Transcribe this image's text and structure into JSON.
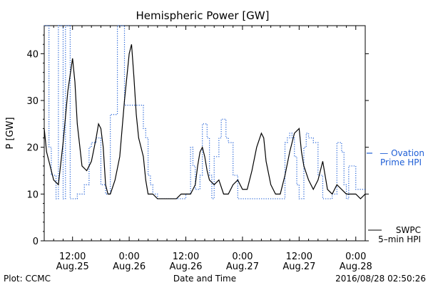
{
  "chart_data": {
    "type": "line",
    "title": "Hemispheric Power [GW]",
    "xlabel": "Date and Time",
    "ylabel": "P [GW]",
    "ylim": [
      0,
      46
    ],
    "xlim": [
      -18,
      50
    ],
    "x_unit": "hours relative to 2016-08-26 00:00 UT",
    "yticks": [
      0,
      10,
      20,
      30,
      40
    ],
    "xticks": [
      {
        "x": -12,
        "time": "12:00",
        "date": "Aug.25"
      },
      {
        "x": 0,
        "time": "0:00",
        "date": "Aug.26"
      },
      {
        "x": 12,
        "time": "12:00",
        "date": "Aug.26"
      },
      {
        "x": 24,
        "time": "0:00",
        "date": "Aug.27"
      },
      {
        "x": 36,
        "time": "12:00",
        "date": "Aug.27"
      },
      {
        "x": 48,
        "time": "0:00",
        "date": "Aug.28"
      }
    ],
    "series": [
      {
        "style": "dotted-step",
        "color": "#1f5fd6",
        "legend_label": "Ovation Prime HPI",
        "legend_line1": "— Ovation",
        "legend_line2": "Prime HPI",
        "x": [
          -18,
          -17,
          -16.5,
          -15.5,
          -15,
          -14,
          -13.5,
          -12.5,
          -11.5,
          -11,
          -10.5,
          -9.5,
          -9,
          -8.5,
          -8,
          -7,
          -6.5,
          -6,
          -5,
          -4.5,
          -4,
          -3,
          -2.5,
          -2,
          -1,
          0,
          1,
          2,
          3,
          3.5,
          4,
          4.5,
          5,
          6,
          8,
          10,
          11,
          12,
          12.5,
          13,
          13.5,
          14,
          15,
          15.5,
          16,
          16.5,
          17,
          17.5,
          18,
          19,
          19.5,
          20,
          20.5,
          21,
          22,
          23,
          24,
          26,
          28,
          29,
          30,
          31,
          32,
          32.5,
          33,
          33.5,
          34,
          34.5,
          35,
          35.5,
          36,
          37,
          37.5,
          38,
          38.5,
          39,
          40,
          41,
          42,
          43,
          44,
          45,
          45.5,
          46,
          46.5,
          47,
          48,
          49,
          50
        ],
        "y": [
          46,
          20,
          14,
          9,
          46,
          9,
          46,
          9,
          9,
          10,
          10,
          12,
          12,
          20,
          21,
          22,
          22,
          12,
          10,
          10,
          27,
          27,
          46,
          46,
          29,
          29,
          29,
          29,
          24,
          22,
          14,
          12,
          10,
          9,
          9,
          9,
          9,
          10,
          10,
          20,
          16,
          11,
          14,
          25,
          25,
          22,
          14,
          9,
          18,
          22,
          26,
          26,
          22,
          21,
          14,
          9,
          9,
          9,
          9,
          9,
          9,
          9,
          9,
          9,
          21,
          22,
          23,
          22,
          18,
          12,
          9,
          20,
          23,
          22,
          22,
          21,
          14,
          9,
          9,
          10,
          21,
          19,
          12,
          9,
          16,
          16,
          11,
          11,
          11
        ]
      },
      {
        "style": "solid",
        "color": "#000000",
        "legend_label": "SWPC 5-min HPI",
        "legend_line1": "SWPC",
        "legend_line2": "5–min HPI",
        "x": [
          -18,
          -17.5,
          -17,
          -16,
          -15,
          -14,
          -13,
          -12,
          -11.5,
          -11,
          -10,
          -9,
          -8,
          -7,
          -6.5,
          -6,
          -5.5,
          -5,
          -4.5,
          -4,
          -3,
          -2,
          -1,
          0,
          0.5,
          1,
          1.5,
          2,
          3,
          3.5,
          4,
          5,
          6,
          7,
          8,
          9,
          10,
          11,
          12,
          13,
          14,
          14.5,
          15,
          15.5,
          16,
          16.5,
          17,
          18,
          19,
          20,
          21,
          22,
          23,
          24,
          25,
          26,
          27,
          28,
          28.5,
          29,
          30,
          31,
          32,
          33,
          34,
          35,
          36,
          36.5,
          37,
          38,
          39,
          40,
          41,
          42,
          43,
          44,
          45,
          46,
          47,
          48,
          49,
          50
        ],
        "y": [
          24,
          19,
          17,
          13,
          12,
          21,
          32,
          39,
          34,
          25,
          16,
          15,
          17,
          22,
          25,
          24,
          20,
          12,
          10,
          10,
          13,
          18,
          30,
          40,
          42,
          35,
          27,
          22,
          18,
          13,
          10,
          10,
          9,
          9,
          9,
          9,
          9,
          10,
          10,
          10,
          12,
          16,
          19,
          20,
          18,
          15,
          13,
          12,
          13,
          10,
          10,
          12,
          13,
          11,
          11,
          15,
          20,
          23,
          22,
          17,
          12,
          10,
          10,
          14,
          19,
          23,
          24,
          19,
          16,
          13,
          11,
          13,
          17,
          11,
          10,
          12,
          11,
          10,
          10,
          10,
          9,
          10
        ]
      }
    ]
  },
  "footer": {
    "plot_credit": "Plot: CCMC",
    "timestamp": "2016/08/28 02:50:26"
  }
}
